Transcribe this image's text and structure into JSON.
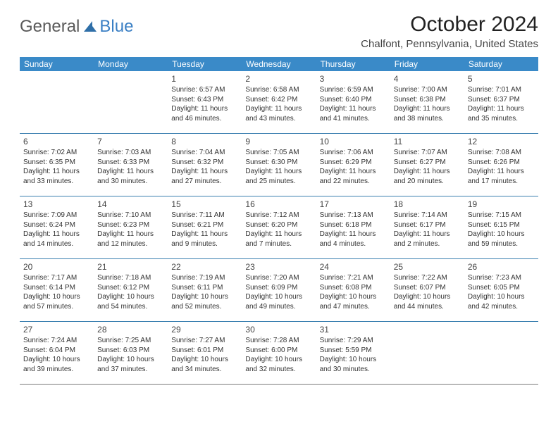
{
  "logo": {
    "text1": "General",
    "text2": "Blue"
  },
  "header": {
    "month_title": "October 2024",
    "location": "Chalfont, Pennsylvania, United States"
  },
  "colors": {
    "header_bg": "#3a8ac8",
    "header_text": "#ffffff",
    "row_divider": "#3a7fb0",
    "logo_blue": "#3a7fc4",
    "body_text": "#333333",
    "page_bg": "#ffffff"
  },
  "weekdays": [
    "Sunday",
    "Monday",
    "Tuesday",
    "Wednesday",
    "Thursday",
    "Friday",
    "Saturday"
  ],
  "weeks": [
    [
      null,
      null,
      {
        "n": "1",
        "sr": "Sunrise: 6:57 AM",
        "ss": "Sunset: 6:43 PM",
        "dl": "Daylight: 11 hours and 46 minutes."
      },
      {
        "n": "2",
        "sr": "Sunrise: 6:58 AM",
        "ss": "Sunset: 6:42 PM",
        "dl": "Daylight: 11 hours and 43 minutes."
      },
      {
        "n": "3",
        "sr": "Sunrise: 6:59 AM",
        "ss": "Sunset: 6:40 PM",
        "dl": "Daylight: 11 hours and 41 minutes."
      },
      {
        "n": "4",
        "sr": "Sunrise: 7:00 AM",
        "ss": "Sunset: 6:38 PM",
        "dl": "Daylight: 11 hours and 38 minutes."
      },
      {
        "n": "5",
        "sr": "Sunrise: 7:01 AM",
        "ss": "Sunset: 6:37 PM",
        "dl": "Daylight: 11 hours and 35 minutes."
      }
    ],
    [
      {
        "n": "6",
        "sr": "Sunrise: 7:02 AM",
        "ss": "Sunset: 6:35 PM",
        "dl": "Daylight: 11 hours and 33 minutes."
      },
      {
        "n": "7",
        "sr": "Sunrise: 7:03 AM",
        "ss": "Sunset: 6:33 PM",
        "dl": "Daylight: 11 hours and 30 minutes."
      },
      {
        "n": "8",
        "sr": "Sunrise: 7:04 AM",
        "ss": "Sunset: 6:32 PM",
        "dl": "Daylight: 11 hours and 27 minutes."
      },
      {
        "n": "9",
        "sr": "Sunrise: 7:05 AM",
        "ss": "Sunset: 6:30 PM",
        "dl": "Daylight: 11 hours and 25 minutes."
      },
      {
        "n": "10",
        "sr": "Sunrise: 7:06 AM",
        "ss": "Sunset: 6:29 PM",
        "dl": "Daylight: 11 hours and 22 minutes."
      },
      {
        "n": "11",
        "sr": "Sunrise: 7:07 AM",
        "ss": "Sunset: 6:27 PM",
        "dl": "Daylight: 11 hours and 20 minutes."
      },
      {
        "n": "12",
        "sr": "Sunrise: 7:08 AM",
        "ss": "Sunset: 6:26 PM",
        "dl": "Daylight: 11 hours and 17 minutes."
      }
    ],
    [
      {
        "n": "13",
        "sr": "Sunrise: 7:09 AM",
        "ss": "Sunset: 6:24 PM",
        "dl": "Daylight: 11 hours and 14 minutes."
      },
      {
        "n": "14",
        "sr": "Sunrise: 7:10 AM",
        "ss": "Sunset: 6:23 PM",
        "dl": "Daylight: 11 hours and 12 minutes."
      },
      {
        "n": "15",
        "sr": "Sunrise: 7:11 AM",
        "ss": "Sunset: 6:21 PM",
        "dl": "Daylight: 11 hours and 9 minutes."
      },
      {
        "n": "16",
        "sr": "Sunrise: 7:12 AM",
        "ss": "Sunset: 6:20 PM",
        "dl": "Daylight: 11 hours and 7 minutes."
      },
      {
        "n": "17",
        "sr": "Sunrise: 7:13 AM",
        "ss": "Sunset: 6:18 PM",
        "dl": "Daylight: 11 hours and 4 minutes."
      },
      {
        "n": "18",
        "sr": "Sunrise: 7:14 AM",
        "ss": "Sunset: 6:17 PM",
        "dl": "Daylight: 11 hours and 2 minutes."
      },
      {
        "n": "19",
        "sr": "Sunrise: 7:15 AM",
        "ss": "Sunset: 6:15 PM",
        "dl": "Daylight: 10 hours and 59 minutes."
      }
    ],
    [
      {
        "n": "20",
        "sr": "Sunrise: 7:17 AM",
        "ss": "Sunset: 6:14 PM",
        "dl": "Daylight: 10 hours and 57 minutes."
      },
      {
        "n": "21",
        "sr": "Sunrise: 7:18 AM",
        "ss": "Sunset: 6:12 PM",
        "dl": "Daylight: 10 hours and 54 minutes."
      },
      {
        "n": "22",
        "sr": "Sunrise: 7:19 AM",
        "ss": "Sunset: 6:11 PM",
        "dl": "Daylight: 10 hours and 52 minutes."
      },
      {
        "n": "23",
        "sr": "Sunrise: 7:20 AM",
        "ss": "Sunset: 6:09 PM",
        "dl": "Daylight: 10 hours and 49 minutes."
      },
      {
        "n": "24",
        "sr": "Sunrise: 7:21 AM",
        "ss": "Sunset: 6:08 PM",
        "dl": "Daylight: 10 hours and 47 minutes."
      },
      {
        "n": "25",
        "sr": "Sunrise: 7:22 AM",
        "ss": "Sunset: 6:07 PM",
        "dl": "Daylight: 10 hours and 44 minutes."
      },
      {
        "n": "26",
        "sr": "Sunrise: 7:23 AM",
        "ss": "Sunset: 6:05 PM",
        "dl": "Daylight: 10 hours and 42 minutes."
      }
    ],
    [
      {
        "n": "27",
        "sr": "Sunrise: 7:24 AM",
        "ss": "Sunset: 6:04 PM",
        "dl": "Daylight: 10 hours and 39 minutes."
      },
      {
        "n": "28",
        "sr": "Sunrise: 7:25 AM",
        "ss": "Sunset: 6:03 PM",
        "dl": "Daylight: 10 hours and 37 minutes."
      },
      {
        "n": "29",
        "sr": "Sunrise: 7:27 AM",
        "ss": "Sunset: 6:01 PM",
        "dl": "Daylight: 10 hours and 34 minutes."
      },
      {
        "n": "30",
        "sr": "Sunrise: 7:28 AM",
        "ss": "Sunset: 6:00 PM",
        "dl": "Daylight: 10 hours and 32 minutes."
      },
      {
        "n": "31",
        "sr": "Sunrise: 7:29 AM",
        "ss": "Sunset: 5:59 PM",
        "dl": "Daylight: 10 hours and 30 minutes."
      },
      null,
      null
    ]
  ]
}
